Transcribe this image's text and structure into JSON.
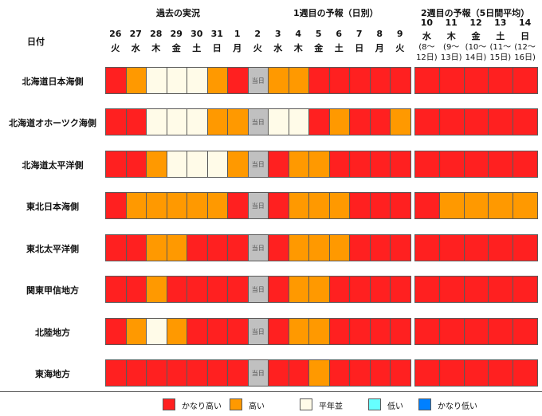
{
  "header": {
    "date_label": "日付",
    "sections": [
      "過去の実況",
      "1週目の予報（日別）",
      "2週目の予報（5日間平均）"
    ],
    "week1": [
      {
        "day": "26",
        "wd": "火"
      },
      {
        "day": "27",
        "wd": "水"
      },
      {
        "day": "28",
        "wd": "木"
      },
      {
        "day": "29",
        "wd": "金"
      },
      {
        "day": "30",
        "wd": "土"
      },
      {
        "day": "31",
        "wd": "日"
      },
      {
        "day": "1",
        "wd": "月"
      },
      {
        "day": "2",
        "wd": "火"
      },
      {
        "day": "3",
        "wd": "水"
      },
      {
        "day": "4",
        "wd": "木"
      },
      {
        "day": "5",
        "wd": "金"
      },
      {
        "day": "6",
        "wd": "土"
      },
      {
        "day": "7",
        "wd": "日"
      },
      {
        "day": "8",
        "wd": "月"
      },
      {
        "day": "9",
        "wd": "火"
      }
    ],
    "week2": [
      {
        "day": "10",
        "wd": "水",
        "r1": "(8～",
        "r2": "12日)"
      },
      {
        "day": "11",
        "wd": "木",
        "r1": "(9～",
        "r2": "13日)"
      },
      {
        "day": "12",
        "wd": "金",
        "r1": "(10～",
        "r2": "14日)"
      },
      {
        "day": "13",
        "wd": "土",
        "r1": "(11～",
        "r2": "15日)"
      },
      {
        "day": "14",
        "wd": "日",
        "r1": "(12～",
        "r2": "16日)"
      }
    ]
  },
  "today_label": "当日",
  "colors": {
    "H": "#ff2020",
    "M": "#ff9900",
    "N": "#fffbe8",
    "L": "#66ffff",
    "VL": "#0080ff",
    "T": "#c0c0c0"
  },
  "chart_data": {
    "type": "heatmap",
    "codes": {
      "H": "かなり高い",
      "M": "高い",
      "N": "平年並",
      "L": "低い",
      "VL": "かなり低い",
      "T": "当日"
    },
    "rows": [
      {
        "region": "北海道日本海側",
        "daily": [
          "H",
          "M",
          "N",
          "N",
          "N",
          "M",
          "H",
          "T",
          "M",
          "M",
          "H",
          "H",
          "H",
          "H",
          "H"
        ],
        "weekly": [
          "H",
          "H",
          "H",
          "H",
          "H"
        ]
      },
      {
        "region": "北海道オホーツク海側",
        "daily": [
          "H",
          "H",
          "N",
          "N",
          "N",
          "M",
          "M",
          "T",
          "N",
          "N",
          "H",
          "M",
          "H",
          "H",
          "M"
        ],
        "weekly": [
          "H",
          "H",
          "H",
          "H",
          "H"
        ]
      },
      {
        "region": "北海道太平洋側",
        "daily": [
          "H",
          "H",
          "M",
          "N",
          "N",
          "N",
          "M",
          "T",
          "H",
          "M",
          "M",
          "H",
          "H",
          "H",
          "H"
        ],
        "weekly": [
          "H",
          "H",
          "H",
          "H",
          "H"
        ]
      },
      {
        "region": "東北日本海側",
        "daily": [
          "H",
          "M",
          "M",
          "M",
          "M",
          "M",
          "H",
          "T",
          "H",
          "M",
          "M",
          "M",
          "H",
          "H",
          "H"
        ],
        "weekly": [
          "H",
          "M",
          "M",
          "M",
          "M"
        ]
      },
      {
        "region": "東北太平洋側",
        "daily": [
          "H",
          "H",
          "M",
          "M",
          "H",
          "H",
          "H",
          "T",
          "H",
          "M",
          "M",
          "M",
          "H",
          "H",
          "H"
        ],
        "weekly": [
          "H",
          "H",
          "H",
          "H",
          "H"
        ]
      },
      {
        "region": "関東甲信地方",
        "daily": [
          "H",
          "H",
          "M",
          "H",
          "H",
          "H",
          "H",
          "T",
          "H",
          "M",
          "M",
          "H",
          "H",
          "H",
          "H"
        ],
        "weekly": [
          "H",
          "H",
          "H",
          "H",
          "H"
        ]
      },
      {
        "region": "北陸地方",
        "daily": [
          "H",
          "M",
          "N",
          "M",
          "H",
          "H",
          "H",
          "T",
          "H",
          "M",
          "M",
          "H",
          "H",
          "H",
          "H"
        ],
        "weekly": [
          "H",
          "H",
          "H",
          "H",
          "H"
        ]
      },
      {
        "region": "東海地方",
        "daily": [
          "H",
          "H",
          "H",
          "H",
          "H",
          "H",
          "H",
          "T",
          "H",
          "H",
          "M",
          "H",
          "H",
          "H",
          "H"
        ],
        "weekly": [
          "H",
          "H",
          "H",
          "H",
          "H"
        ]
      }
    ]
  },
  "legend": [
    {
      "code": "H",
      "label": "かなり高い"
    },
    {
      "code": "M",
      "label": "高い"
    },
    {
      "code": "N",
      "label": "平年並"
    },
    {
      "code": "L",
      "label": "低い"
    },
    {
      "code": "VL",
      "label": "かなり低い"
    }
  ]
}
